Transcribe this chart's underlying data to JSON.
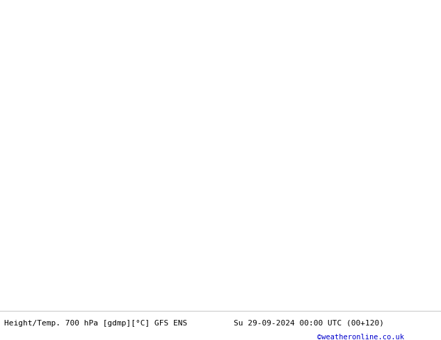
{
  "title_left": "Height/Temp. 700 hPa [gdmp][°C] GFS ENS",
  "title_right": "Su 29-09-2024 00:00 UTC (00+120)",
  "credit": "©weatheronline.co.uk",
  "land_color": "#c8f0a0",
  "sea_color": "#d0d0d0",
  "border_color": "#a0a0a0",
  "white": "#ffffff",
  "black": "#000000",
  "red": "#e00000",
  "magenta": "#dd00aa",
  "credit_color": "#0000cc",
  "fig_width": 6.34,
  "fig_height": 4.9,
  "dpi": 100,
  "lon_min": -10,
  "lon_max": 50,
  "lat_min": 24,
  "lat_max": 58
}
